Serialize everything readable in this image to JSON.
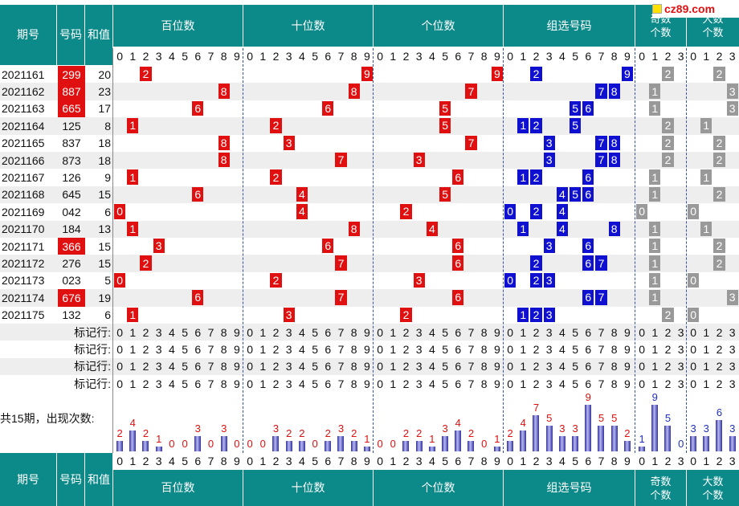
{
  "header": {
    "period": "期号",
    "number": "号码",
    "sum": "和值",
    "groups": [
      "百位数",
      "十位数",
      "个位数",
      "组选号码",
      "奇数个数",
      "大数个数"
    ]
  },
  "logo": "cz89.com",
  "draws": [
    {
      "period": "2021161",
      "number": "299",
      "sum": "20",
      "highlight": true
    },
    {
      "period": "2021162",
      "number": "887",
      "sum": "23",
      "highlight": true
    },
    {
      "period": "2021163",
      "number": "665",
      "sum": "17",
      "highlight": true
    },
    {
      "period": "2021164",
      "number": "125",
      "sum": "8",
      "highlight": false
    },
    {
      "period": "2021165",
      "number": "837",
      "sum": "18",
      "highlight": false
    },
    {
      "period": "2021166",
      "number": "873",
      "sum": "18",
      "highlight": false
    },
    {
      "period": "2021167",
      "number": "126",
      "sum": "9",
      "highlight": false
    },
    {
      "period": "2021168",
      "number": "645",
      "sum": "15",
      "highlight": false
    },
    {
      "period": "2021169",
      "number": "042",
      "sum": "6",
      "highlight": false
    },
    {
      "period": "2021170",
      "number": "184",
      "sum": "13",
      "highlight": false
    },
    {
      "period": "2021171",
      "number": "366",
      "sum": "15",
      "highlight": true
    },
    {
      "period": "2021172",
      "number": "276",
      "sum": "15",
      "highlight": false
    },
    {
      "period": "2021173",
      "number": "023",
      "sum": "5",
      "highlight": false
    },
    {
      "period": "2021174",
      "number": "676",
      "sum": "19",
      "highlight": true
    },
    {
      "period": "2021175",
      "number": "132",
      "sum": "6",
      "highlight": false
    }
  ],
  "marker_label": "标记行:",
  "summary_label": "共15期，出现次数:",
  "chart_data": {
    "type": "bar",
    "categories": [
      "0",
      "1",
      "2",
      "3",
      "4",
      "5",
      "6",
      "7",
      "8",
      "9"
    ],
    "hundreds": [
      2,
      4,
      2,
      1,
      0,
      0,
      3,
      0,
      3,
      0
    ],
    "tens": [
      0,
      0,
      3,
      2,
      2,
      0,
      2,
      3,
      2,
      1
    ],
    "units": [
      0,
      0,
      2,
      2,
      1,
      3,
      4,
      2,
      0,
      1
    ],
    "group": [
      2,
      4,
      7,
      5,
      3,
      3,
      9,
      5,
      5,
      2
    ],
    "odd_count": [
      1,
      9,
      5,
      0
    ],
    "big_count": [
      3,
      3,
      6,
      3
    ]
  }
}
